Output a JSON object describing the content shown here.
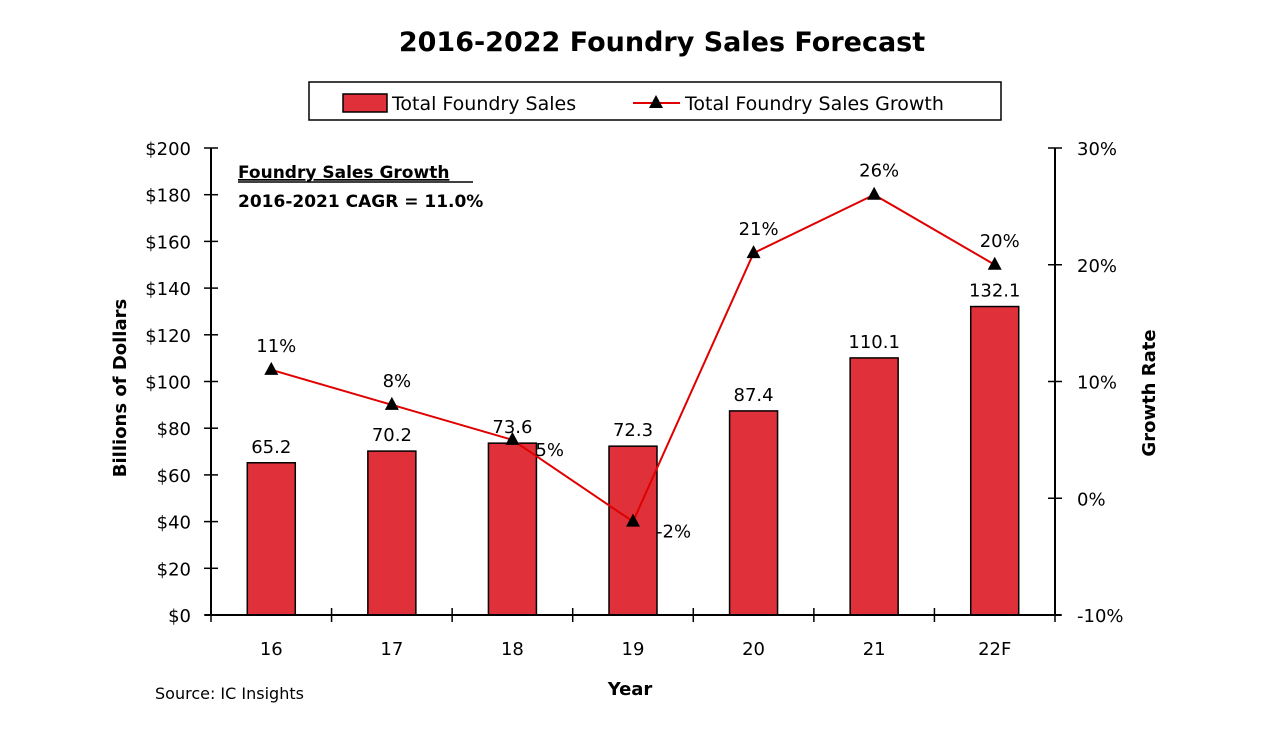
{
  "chart_data": {
    "type": "bar",
    "title": "2016-2022 Foundry Sales Forecast",
    "xlabel": "Year",
    "ylabel": "Billions of Dollars",
    "y2label": "Growth Rate",
    "categories": [
      "16",
      "17",
      "18",
      "19",
      "20",
      "21",
      "22F"
    ],
    "ylim": [
      0,
      200
    ],
    "yticks": [
      0,
      20,
      40,
      60,
      80,
      100,
      120,
      140,
      160,
      180,
      200
    ],
    "ytick_labels": [
      "$0",
      "$20",
      "$40",
      "$60",
      "$80",
      "$100",
      "$120",
      "$140",
      "$160",
      "$180",
      "$200"
    ],
    "y2lim": [
      -10,
      30
    ],
    "y2ticks": [
      -10,
      0,
      10,
      20,
      30
    ],
    "y2tick_labels": [
      "-10%",
      "0%",
      "10%",
      "20%",
      "30%"
    ],
    "grid": false,
    "legend_placement": "top-center",
    "series": [
      {
        "name": "Total Foundry Sales",
        "type": "bar",
        "axis": "left",
        "color": "#e0303a",
        "values": [
          65.2,
          70.2,
          73.6,
          72.3,
          87.4,
          110.1,
          132.1
        ],
        "data_labels": [
          "65.2",
          "70.2",
          "73.6",
          "72.3",
          "87.4",
          "110.1",
          "132.1"
        ]
      },
      {
        "name": "Total Foundry Sales Growth",
        "type": "line",
        "axis": "right",
        "color": "#e00000",
        "marker": "triangle",
        "marker_color": "#000000",
        "values": [
          11,
          8,
          5,
          -2,
          21,
          26,
          20
        ],
        "data_labels": [
          "11%",
          "8%",
          "5%",
          "-2%",
          "21%",
          "26%",
          "20%"
        ]
      }
    ],
    "annotations": {
      "heading": "Foundry Sales Growth",
      "cagr": "2016-2021 CAGR = 11.0%"
    },
    "source": "Source: IC Insights"
  }
}
